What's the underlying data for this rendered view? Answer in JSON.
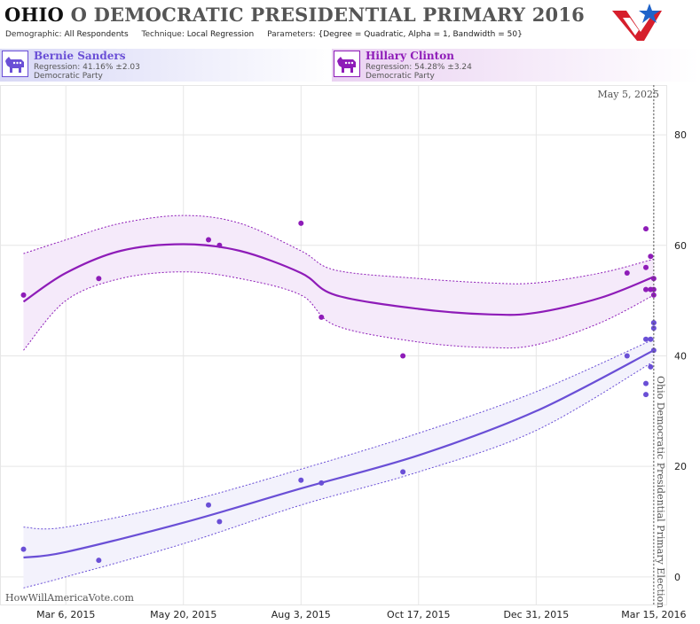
{
  "header": {
    "state": "OHIO",
    "title_rest": "O DEMOCRATIC PRESIDENTIAL PRIMARY 2016",
    "demographic_label": "Demographic:",
    "demographic_value": "All Respondents",
    "technique_label": "Technique:",
    "technique_value": "Local Regression",
    "parameters_label": "Parameters:",
    "parameters_value": "{Degree = Quadratic, Alpha = 1, Bandwidth = 50}"
  },
  "candidates": [
    {
      "name": "Bernie Sanders",
      "regression": "Regression: 41.16% ±2.03",
      "party": "Democratic Party",
      "color": "#6a4fd6"
    },
    {
      "name": "Hillary Clinton",
      "regression": "Regression: 54.28% ±3.24",
      "party": "Democratic Party",
      "color": "#8e1cb8"
    }
  ],
  "footer": {
    "watermark": "HowWillAmericaVote.com"
  },
  "chart_data": {
    "type": "scatter",
    "x_type": "date",
    "x_range": [
      "2015-01-23",
      "2016-03-23"
    ],
    "ylim": [
      -5,
      89
    ],
    "x_ticks": [
      {
        "date": "2015-03-06",
        "label": "Mar 6, 2015"
      },
      {
        "date": "2015-05-20",
        "label": "May 20, 2015"
      },
      {
        "date": "2015-08-03",
        "label": "Aug 3, 2015"
      },
      {
        "date": "2015-10-17",
        "label": "Oct 17, 2015"
      },
      {
        "date": "2015-12-31",
        "label": "Dec 31, 2015"
      },
      {
        "date": "2016-03-15",
        "label": "Mar 15, 2016"
      }
    ],
    "y_ticks": [
      0,
      20,
      40,
      60,
      80
    ],
    "grid": true,
    "annotations": {
      "top_date": "May 5, 2025",
      "election_date": "2016-03-15",
      "election_label": "Ohio Democratic Presidential Primary Election"
    },
    "series": [
      {
        "name": "Hillary Clinton",
        "color": "#8e1cb8",
        "band_fill": "#f5eafa",
        "points": [
          {
            "date": "2015-02-07",
            "y": 51
          },
          {
            "date": "2015-03-27",
            "y": 54
          },
          {
            "date": "2015-06-05",
            "y": 61
          },
          {
            "date": "2015-06-12",
            "y": 60
          },
          {
            "date": "2015-08-03",
            "y": 64
          },
          {
            "date": "2015-08-16",
            "y": 47
          },
          {
            "date": "2015-10-07",
            "y": 40
          },
          {
            "date": "2016-02-27",
            "y": 55
          },
          {
            "date": "2016-03-10",
            "y": 63
          },
          {
            "date": "2016-03-10",
            "y": 56
          },
          {
            "date": "2016-03-10",
            "y": 52
          },
          {
            "date": "2016-03-13",
            "y": 58
          },
          {
            "date": "2016-03-13",
            "y": 52
          },
          {
            "date": "2016-03-15",
            "y": 54
          },
          {
            "date": "2016-03-15",
            "y": 52
          },
          {
            "date": "2016-03-15",
            "y": 51
          }
        ],
        "fit": [
          {
            "date": "2015-02-07",
            "y": 49.8,
            "lo": 41,
            "hi": 58.5
          },
          {
            "date": "2015-03-06",
            "y": 55,
            "lo": 50,
            "hi": 61
          },
          {
            "date": "2015-04-10",
            "y": 59,
            "lo": 54,
            "hi": 64
          },
          {
            "date": "2015-05-20",
            "y": 60.2,
            "lo": 55.2,
            "hi": 65.4
          },
          {
            "date": "2015-06-25",
            "y": 59,
            "lo": 54,
            "hi": 64
          },
          {
            "date": "2015-08-03",
            "y": 55,
            "lo": 51,
            "hi": 59
          },
          {
            "date": "2015-08-25",
            "y": 51,
            "lo": 45.5,
            "hi": 55.5
          },
          {
            "date": "2015-10-17",
            "y": 48.5,
            "lo": 42.5,
            "hi": 54
          },
          {
            "date": "2015-12-01",
            "y": 47.5,
            "lo": 41.5,
            "hi": 53.2
          },
          {
            "date": "2015-12-31",
            "y": 47.8,
            "lo": 42,
            "hi": 53.2
          },
          {
            "date": "2016-02-10",
            "y": 50.5,
            "lo": 46,
            "hi": 55
          },
          {
            "date": "2016-03-15",
            "y": 54.3,
            "lo": 51,
            "hi": 57.5
          }
        ]
      },
      {
        "name": "Bernie Sanders",
        "color": "#6a4fd6",
        "band_fill": "#f3f2fc",
        "points": [
          {
            "date": "2015-02-07",
            "y": 5
          },
          {
            "date": "2015-03-27",
            "y": 3
          },
          {
            "date": "2015-06-05",
            "y": 13
          },
          {
            "date": "2015-06-12",
            "y": 10
          },
          {
            "date": "2015-08-03",
            "y": 17.5
          },
          {
            "date": "2015-08-16",
            "y": 17
          },
          {
            "date": "2015-10-07",
            "y": 19
          },
          {
            "date": "2016-02-27",
            "y": 40
          },
          {
            "date": "2016-03-10",
            "y": 43
          },
          {
            "date": "2016-03-10",
            "y": 35
          },
          {
            "date": "2016-03-10",
            "y": 33
          },
          {
            "date": "2016-03-13",
            "y": 43
          },
          {
            "date": "2016-03-13",
            "y": 38
          },
          {
            "date": "2016-03-15",
            "y": 46
          },
          {
            "date": "2016-03-15",
            "y": 46
          },
          {
            "date": "2016-03-15",
            "y": 45
          },
          {
            "date": "2016-03-15",
            "y": 41
          }
        ],
        "fit": [
          {
            "date": "2015-02-07",
            "y": 3.5,
            "lo": -2,
            "hi": 9
          },
          {
            "date": "2015-03-06",
            "y": 4.5,
            "lo": 0,
            "hi": 9
          },
          {
            "date": "2015-05-20",
            "y": 9.8,
            "lo": 6,
            "hi": 13.5
          },
          {
            "date": "2015-08-03",
            "y": 16,
            "lo": 13,
            "hi": 19.5
          },
          {
            "date": "2015-10-17",
            "y": 22,
            "lo": 19,
            "hi": 26
          },
          {
            "date": "2015-12-31",
            "y": 30,
            "lo": 26.5,
            "hi": 33.5
          },
          {
            "date": "2016-03-15",
            "y": 41,
            "lo": 39,
            "hi": 43
          }
        ]
      }
    ]
  }
}
